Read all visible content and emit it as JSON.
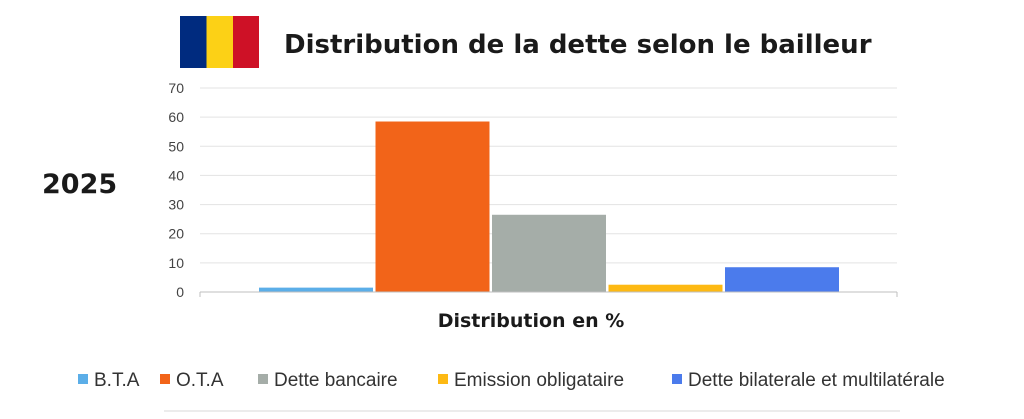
{
  "title": "Distribution de la dette selon le bailleur",
  "year": "2025",
  "flag_colors": [
    "#002B7F",
    "#FCD116",
    "#CE1126"
  ],
  "chart_data": {
    "type": "bar",
    "categories": [
      "B.T.A",
      "O.T.A",
      "Dette bancaire",
      "Emission obligataire",
      "Dette bilaterale et multilatérale"
    ],
    "values": [
      1.5,
      58.5,
      26.5,
      2.5,
      8.5
    ],
    "colors": [
      "#5BAEE8",
      "#F26419",
      "#A5ADA8",
      "#FDB913",
      "#4B7BEC"
    ],
    "xlabel": "Distribution en %",
    "ylabel": "",
    "ylim": [
      0,
      70
    ],
    "yticks": [
      0,
      10,
      20,
      30,
      40,
      50,
      60,
      70
    ],
    "grid": true,
    "legend_position": "bottom"
  }
}
